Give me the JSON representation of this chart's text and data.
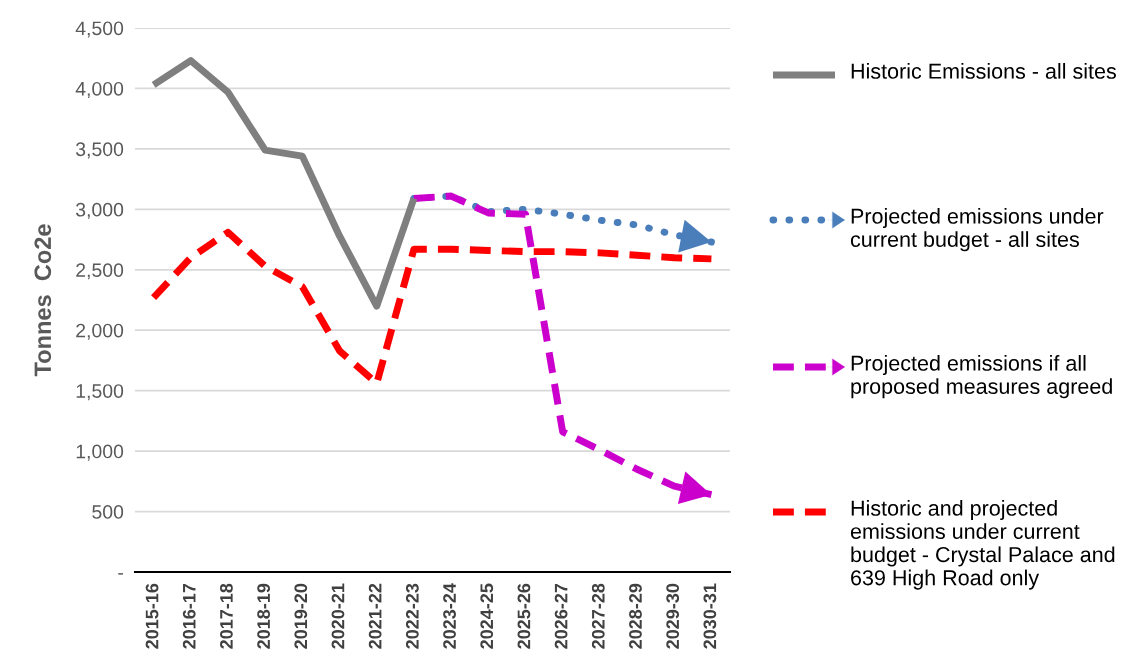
{
  "chart_data": {
    "type": "line",
    "ylabel": "Tonnes  Co2e",
    "categories": [
      "2015-16",
      "2016-17",
      "2017-18",
      "2018-19",
      "2019-20",
      "2020-21",
      "2021-22",
      "2022-23",
      "2023-24",
      "2024-25",
      "2025-26",
      "2026-27",
      "2027-28",
      "2028-29",
      "2029-30",
      "2030-31"
    ],
    "series": [
      {
        "name": "Historic Emissions - all sites",
        "color": "#7f7f7f",
        "line_style": "solid",
        "values": [
          4030,
          4230,
          3970,
          3490,
          3440,
          2780,
          2200,
          3090,
          null,
          null,
          null,
          null,
          null,
          null,
          null,
          null
        ]
      },
      {
        "name": "Projected emissions under current budget - all sites",
        "color": "#4a7ebb",
        "line_style": "dotted",
        "values": [
          null,
          null,
          null,
          null,
          null,
          null,
          null,
          3090,
          3110,
          2980,
          3000,
          2960,
          2910,
          2870,
          2790,
          2730
        ]
      },
      {
        "name": "Projected emissions if all proposed measures agreed",
        "color": "#cc00cc",
        "line_style": "dashed",
        "values": [
          null,
          null,
          null,
          null,
          null,
          null,
          null,
          3090,
          3110,
          2970,
          2960,
          1160,
          1010,
          850,
          710,
          640
        ]
      },
      {
        "name": "Historic and projected emissions under current budget - Crystal Palace and 639 High Road only",
        "color": "#ff0000",
        "line_style": "dashed",
        "values": [
          2270,
          2600,
          2810,
          2530,
          2360,
          1830,
          1560,
          2670,
          2670,
          2660,
          2650,
          2650,
          2640,
          2620,
          2600,
          2590
        ]
      }
    ],
    "ylim": [
      0,
      4500
    ],
    "yticks": [
      {
        "value": 0,
        "label": "-"
      },
      {
        "value": 500,
        "label": "500"
      },
      {
        "value": 1000,
        "label": "1,000"
      },
      {
        "value": 1500,
        "label": "1,500"
      },
      {
        "value": 2000,
        "label": "2,000"
      },
      {
        "value": 2500,
        "label": "2,500"
      },
      {
        "value": 3000,
        "label": "3,000"
      },
      {
        "value": 3500,
        "label": "3,500"
      },
      {
        "value": 4000,
        "label": "4,000"
      },
      {
        "value": 4500,
        "label": "4,500"
      }
    ],
    "grid": "y",
    "legend": "right"
  }
}
